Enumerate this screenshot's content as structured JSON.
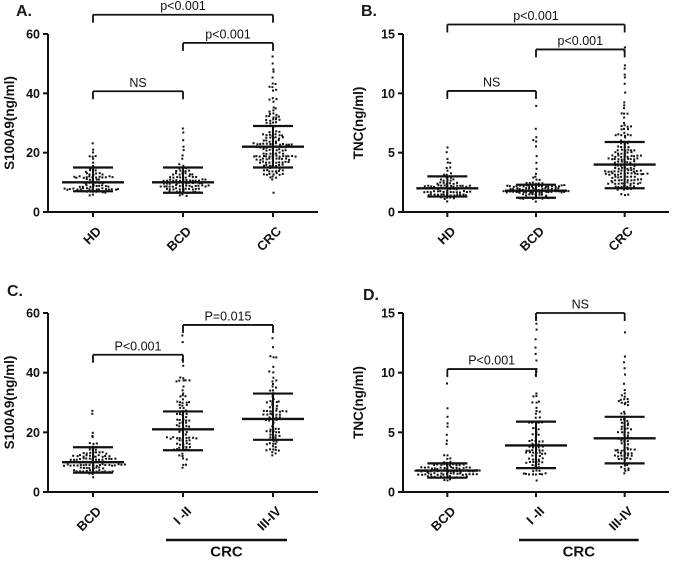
{
  "figure": {
    "background": "#ffffff",
    "ink": "#111111",
    "description": "Four-panel scatter dot plots comparing S100A9 and TNC serum levels"
  },
  "chart_data": [
    {
      "type": "scatter",
      "panel_label": "A.",
      "ylabel": "S100A9(ng/ml)",
      "ylim": [
        0,
        60
      ],
      "yticks": [
        0,
        20,
        40,
        60
      ],
      "categories": [
        "HD",
        "BCD",
        "CRC"
      ],
      "groups": [
        {
          "label": "HD",
          "center": 10,
          "err_low": 7,
          "err_high": 15,
          "n": 85,
          "sigma": 0.27,
          "min": 5.5,
          "max": 23,
          "outliers": [
            17.5,
            18.5,
            20,
            21,
            23
          ]
        },
        {
          "label": "BCD",
          "center": 10,
          "err_low": 6.5,
          "err_high": 15,
          "n": 100,
          "sigma": 0.27,
          "min": 5,
          "max": 16.5,
          "outliers": [
            18,
            19,
            20.5,
            21.5,
            24,
            27,
            28
          ]
        },
        {
          "label": "CRC",
          "center": 22,
          "err_low": 15,
          "err_high": 29,
          "n": 165,
          "sigma": 0.33,
          "min": 6,
          "max": 52,
          "outliers": [
            48,
            50,
            52
          ]
        }
      ],
      "brackets": [
        {
          "from": 0,
          "to": 2,
          "y": 66.5,
          "label": "p<0.001"
        },
        {
          "from": 1,
          "to": 2,
          "y": 57,
          "label": "p<0.001"
        },
        {
          "from": 0,
          "to": 1,
          "y": 40.7,
          "label": "NS"
        }
      ],
      "group_annotation": null
    },
    {
      "type": "scatter",
      "panel_label": "B.",
      "ylabel": "TNC(ng/ml)",
      "ylim": [
        0,
        15
      ],
      "yticks": [
        0,
        5,
        10,
        15
      ],
      "categories": [
        "HD",
        "BCD",
        "CRC"
      ],
      "groups": [
        {
          "label": "HD",
          "center": 2.0,
          "err_low": 1.3,
          "err_high": 3.0,
          "n": 85,
          "sigma": 0.32,
          "min": 0.9,
          "max": 4.6,
          "outliers": [
            5.0,
            5.4
          ]
        },
        {
          "label": "BCD",
          "center": 1.8,
          "err_low": 1.2,
          "err_high": 2.3,
          "n": 100,
          "sigma": 0.27,
          "min": 0.8,
          "max": 3.2,
          "outliers": [
            3.8,
            4.2,
            4.6,
            5.4,
            5.9,
            6.1,
            6.3,
            7.0,
            9.1
          ]
        },
        {
          "label": "CRC",
          "center": 4.0,
          "err_low": 2.0,
          "err_high": 5.9,
          "n": 165,
          "sigma": 0.45,
          "min": 1.0,
          "max": 10.2,
          "outliers": [
            10.8,
            11.2,
            11.6,
            12.0,
            12.4,
            13.6,
            13.9
          ]
        }
      ],
      "brackets": [
        {
          "from": 0,
          "to": 2,
          "y": 15.8,
          "label": "p<0.001"
        },
        {
          "from": 1,
          "to": 2,
          "y": 13.7,
          "label": "p<0.001"
        },
        {
          "from": 0,
          "to": 1,
          "y": 10.2,
          "label": "NS"
        }
      ],
      "group_annotation": null
    },
    {
      "type": "scatter",
      "panel_label": "C.",
      "ylabel": "S100A9(ng/ml)",
      "ylim": [
        0,
        60
      ],
      "yticks": [
        0,
        20,
        40,
        60
      ],
      "categories": [
        "BCD",
        "I -II",
        "III-IV"
      ],
      "groups": [
        {
          "label": "BCD",
          "center": 10,
          "err_low": 6.5,
          "err_high": 15,
          "n": 100,
          "sigma": 0.27,
          "min": 5,
          "max": 16.5,
          "outliers": [
            18,
            19,
            20.5,
            26,
            27
          ]
        },
        {
          "label": "I -II",
          "center": 21,
          "err_low": 14,
          "err_high": 27,
          "n": 95,
          "sigma": 0.38,
          "min": 5,
          "max": 46,
          "outliers": [
            50,
            52
          ]
        },
        {
          "label": "III-IV",
          "center": 24.5,
          "err_low": 17.5,
          "err_high": 33,
          "n": 85,
          "sigma": 0.32,
          "min": 8,
          "max": 46,
          "outliers": [
            48,
            51
          ]
        }
      ],
      "brackets": [
        {
          "from": 0,
          "to": 1,
          "y": 46,
          "label": "P<0.001"
        },
        {
          "from": 1,
          "to": 2,
          "y": 56,
          "label": "P=0.015"
        }
      ],
      "group_annotation": {
        "from": 1,
        "to": 2,
        "label": "CRC"
      }
    },
    {
      "type": "scatter",
      "panel_label": "D.",
      "ylabel": "TNC(ng/ml)",
      "ylim": [
        0,
        15
      ],
      "yticks": [
        0,
        5,
        10,
        15
      ],
      "categories": [
        "BCD",
        "I -II",
        "III-IV"
      ],
      "groups": [
        {
          "label": "BCD",
          "center": 1.8,
          "err_low": 1.2,
          "err_high": 2.4,
          "n": 100,
          "sigma": 0.27,
          "min": 0.8,
          "max": 3.2,
          "outliers": [
            3.9,
            4.3,
            4.7,
            5.5,
            5.9,
            6.2,
            7.1,
            9.1
          ]
        },
        {
          "label": "I -II",
          "center": 3.9,
          "err_low": 2.0,
          "err_high": 5.9,
          "n": 95,
          "sigma": 0.5,
          "min": 1.0,
          "max": 8.6,
          "outliers": [
            9.8,
            10.1,
            10.4,
            11.0,
            11.6,
            12.0,
            12.9,
            13.6,
            14.2,
            14.5
          ]
        },
        {
          "label": "III-IV",
          "center": 4.5,
          "err_low": 2.4,
          "err_high": 6.3,
          "n": 85,
          "sigma": 0.45,
          "min": 1.0,
          "max": 9.4,
          "outliers": [
            9.7,
            10.2,
            10.8,
            11.3,
            13.4
          ]
        }
      ],
      "brackets": [
        {
          "from": 0,
          "to": 1,
          "y": 10.3,
          "label": "P<0.001"
        },
        {
          "from": 1,
          "to": 2,
          "y": 15.0,
          "label": "NS"
        }
      ],
      "group_annotation": {
        "from": 1,
        "to": 2,
        "label": "CRC"
      }
    }
  ]
}
